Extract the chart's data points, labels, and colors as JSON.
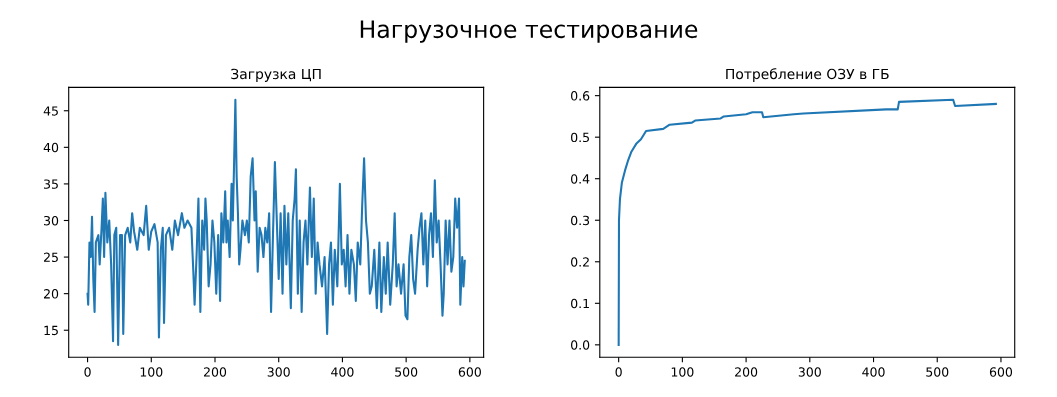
{
  "chart_data": [
    {
      "type": "line",
      "title": "Загрузка ЦП",
      "series": [
        {
          "color": "#1f77b4",
          "x": [
            0,
            1,
            3,
            5,
            7,
            9,
            11,
            13,
            17,
            19,
            22,
            24,
            26,
            28,
            31,
            34,
            37,
            40,
            42,
            45,
            48,
            51,
            54,
            56,
            59,
            63,
            67,
            70,
            73,
            78,
            82,
            88,
            92,
            96,
            100,
            105,
            110,
            112,
            115,
            118,
            120,
            123,
            128,
            133,
            137,
            142,
            148,
            152,
            157,
            163,
            166,
            168,
            171,
            174,
            177,
            180,
            183,
            185,
            187,
            190,
            193,
            196,
            199,
            202,
            205,
            208,
            210,
            213,
            216,
            218,
            220,
            223,
            226,
            228,
            230,
            232,
            234,
            236,
            238,
            240,
            243,
            247,
            250,
            253,
            256,
            259,
            262,
            264,
            267,
            270,
            273,
            276,
            279,
            282,
            285,
            288,
            291,
            294,
            297,
            300,
            303,
            306,
            309,
            312,
            315,
            319,
            322,
            325,
            327,
            330,
            333,
            336,
            339,
            342,
            345,
            349,
            352,
            355,
            358,
            361,
            364,
            368,
            372,
            376,
            379,
            382,
            385,
            388,
            392,
            396,
            399,
            402,
            405,
            408,
            411,
            414,
            418,
            421,
            424,
            428,
            431,
            434,
            437,
            440,
            443,
            446,
            450,
            454,
            458,
            461,
            465,
            468,
            471,
            475,
            479,
            482,
            485,
            488,
            492,
            496,
            499,
            502,
            505,
            508,
            511,
            514,
            518,
            521,
            524,
            527,
            530,
            533,
            536,
            539,
            542,
            545,
            548,
            551,
            554,
            557,
            559,
            562,
            565,
            568,
            571,
            574,
            577,
            580,
            583,
            585,
            588,
            590,
            592
          ],
          "values": [
            20,
            18.5,
            27,
            25,
            30.5,
            22,
            17.5,
            27,
            28,
            24,
            29,
            33,
            25,
            33.8,
            27,
            30,
            24,
            13.5,
            28,
            29,
            13,
            28,
            28,
            14.5,
            28,
            29,
            27,
            31,
            28.5,
            26,
            29,
            28,
            32,
            26,
            28.5,
            29.5,
            27,
            14,
            26,
            29,
            16,
            28,
            29,
            26,
            30,
            28,
            31,
            29,
            30,
            29,
            23,
            18.5,
            25,
            33,
            17.5,
            30,
            26,
            33,
            30,
            21,
            24,
            30,
            27,
            20,
            28,
            19,
            31,
            27,
            34,
            27,
            30,
            25,
            35,
            30,
            38,
            46.5,
            36,
            31,
            24,
            26,
            30,
            28,
            30,
            27,
            36,
            38.5,
            30,
            34,
            23,
            29,
            28,
            25,
            29,
            27,
            31,
            17.5,
            28,
            38,
            30,
            22,
            31,
            20,
            32,
            24,
            31,
            18,
            30,
            33,
            37,
            20,
            30,
            17.5,
            27,
            30,
            24,
            34.5,
            25,
            33,
            20,
            27,
            24,
            21,
            25,
            14.5,
            24,
            27,
            18.5,
            26,
            21,
            35,
            24,
            26,
            21,
            28,
            20,
            26,
            24,
            19,
            27,
            24,
            32,
            38.5,
            30,
            27,
            20,
            21,
            26,
            18,
            27,
            17.5,
            25,
            20,
            27,
            18.5,
            24,
            31,
            21,
            24,
            20,
            24,
            17,
            16.5,
            25,
            28,
            22,
            20,
            26,
            29,
            31,
            24,
            30,
            21,
            28,
            31,
            25,
            35.5,
            27,
            30,
            24,
            17,
            20,
            30,
            24,
            30,
            23,
            25,
            33,
            29,
            33,
            18.5,
            25,
            21,
            24.5
          ]
        }
      ],
      "xlim": [
        -29.6,
        621.6
      ],
      "xticks": [
        0,
        100,
        200,
        300,
        400,
        500,
        600
      ],
      "ylim": [
        11.3,
        48.2
      ],
      "yticks": [
        15,
        20,
        25,
        30,
        35,
        40,
        45
      ],
      "grid": false,
      "legend": false
    },
    {
      "type": "line",
      "title": "Потребление ОЗУ в ГБ",
      "series": [
        {
          "color": "#1f77b4",
          "x": [
            0,
            0.5,
            2,
            5,
            10,
            15,
            20,
            28,
            35,
            43,
            70,
            80,
            115,
            120,
            160,
            165,
            200,
            210,
            225,
            227,
            275,
            290,
            420,
            438,
            440,
            525,
            528,
            592
          ],
          "values": [
            0.0,
            0.3,
            0.35,
            0.39,
            0.42,
            0.445,
            0.465,
            0.485,
            0.495,
            0.515,
            0.52,
            0.53,
            0.535,
            0.54,
            0.545,
            0.55,
            0.555,
            0.56,
            0.56,
            0.548,
            0.555,
            0.557,
            0.567,
            0.567,
            0.585,
            0.59,
            0.575,
            0.58
          ]
        }
      ],
      "xlim": [
        -29.6,
        621.6
      ],
      "xticks": [
        0,
        100,
        200,
        300,
        400,
        500,
        600
      ],
      "ylim": [
        -0.03,
        0.62
      ],
      "yticks": [
        {
          "value": 0,
          "label": "0.0"
        },
        {
          "value": 0.1,
          "label": "0.1"
        },
        {
          "value": 0.2,
          "label": "0.2"
        },
        {
          "value": 0.3,
          "label": "0.3"
        },
        {
          "value": 0.4,
          "label": "0.4"
        },
        {
          "value": 0.5,
          "label": "0.5"
        },
        {
          "value": 0.6,
          "label": "0.6"
        }
      ],
      "grid": false,
      "legend": false
    },
    {
      "type": "other",
      "title": "Нагрузочное тестирование"
    }
  ]
}
